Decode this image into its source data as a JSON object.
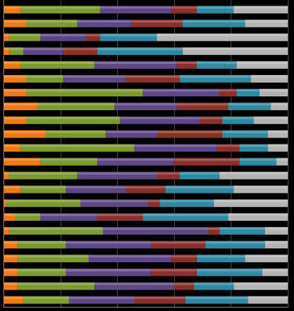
{
  "chart_data": {
    "type": "bar",
    "orientation": "horizontal",
    "stacking": "percent",
    "title": "",
    "xlabel": "",
    "ylabel": "",
    "xlim": [
      0,
      100
    ],
    "grid": true,
    "legend": "none",
    "tick_labels_visible": false,
    "colors": [
      "#f07a12",
      "#7c9a2e",
      "#5e4785",
      "#8c302c",
      "#2f8aa1",
      "#b3b3b3"
    ],
    "rows": [
      [
        6,
        28,
        25,
        9,
        13,
        19
      ],
      [
        8,
        18,
        19,
        18,
        22,
        15
      ],
      [
        2,
        11,
        16,
        5,
        20,
        46
      ],
      [
        2,
        5,
        14,
        12,
        30,
        37
      ],
      [
        6,
        26,
        29,
        7,
        14,
        18
      ],
      [
        8,
        13,
        22,
        19,
        25,
        13
      ],
      [
        8,
        41,
        27,
        6,
        8,
        10
      ],
      [
        12,
        27,
        22,
        18,
        15,
        6
      ],
      [
        8,
        33,
        28,
        8,
        11,
        12
      ],
      [
        15,
        21,
        18,
        23,
        16,
        7
      ],
      [
        6,
        40,
        29,
        8,
        10,
        7
      ],
      [
        13,
        20,
        27,
        23,
        13,
        4
      ],
      [
        2,
        24,
        28,
        8,
        14,
        24
      ],
      [
        6,
        16,
        21,
        14,
        24,
        19
      ],
      [
        1,
        26,
        24,
        4,
        19,
        26
      ],
      [
        4,
        9,
        20,
        16,
        30,
        21
      ],
      [
        2,
        33,
        37,
        4,
        16,
        8
      ],
      [
        5,
        17,
        30,
        19,
        21,
        8
      ],
      [
        5,
        25,
        29,
        9,
        17,
        15
      ],
      [
        5,
        17,
        30,
        16,
        23,
        9
      ],
      [
        5,
        27,
        28,
        7,
        14,
        19
      ],
      [
        7,
        16,
        23,
        18,
        22,
        14
      ]
    ]
  }
}
